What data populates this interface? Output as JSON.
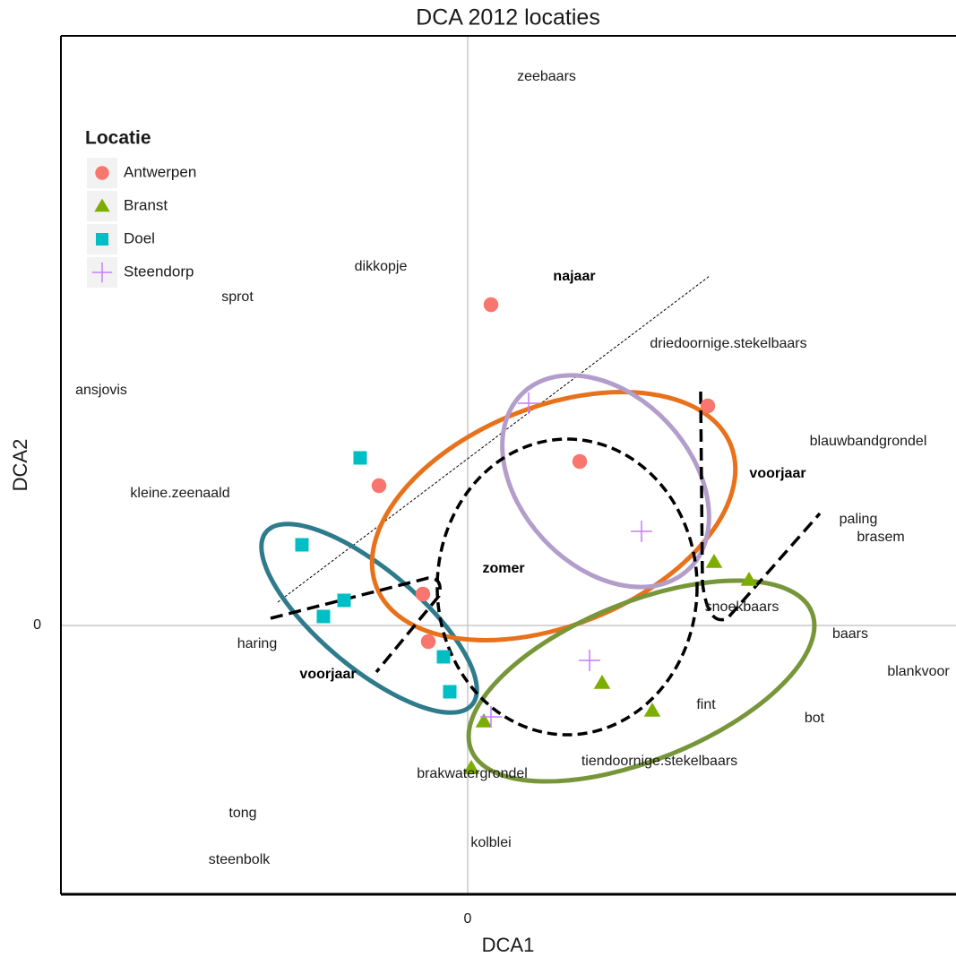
{
  "chart_data": {
    "type": "scatter",
    "title": "DCA 2012 locaties",
    "x_label": "DCA1",
    "y_label": "DCA2",
    "xlim": [
      -4.54,
      5.45
    ],
    "ylim": [
      -3.0,
      6.58
    ],
    "xticks": [
      0
    ],
    "yticks": [
      0
    ],
    "legend_title": "Locatie",
    "legend_position": "upper left",
    "series": [
      {
        "name": "Antwerpen",
        "color": "#f8766d",
        "marker": "circle",
        "x": [
          0.26,
          2.68,
          1.25,
          -0.99,
          -0.5,
          -0.44
        ],
        "y": [
          3.58,
          2.45,
          1.83,
          1.56,
          0.35,
          -0.18
        ]
      },
      {
        "name": "Branst",
        "color": "#7cae00",
        "marker": "triangle",
        "x": [
          2.75,
          3.14,
          1.5,
          2.06,
          0.18,
          0.04
        ],
        "y": [
          0.71,
          0.51,
          -0.64,
          -0.95,
          -1.07,
          -1.59
        ]
      },
      {
        "name": "Doel",
        "color": "#00bfc4",
        "marker": "square",
        "x": [
          -1.2,
          -1.85,
          -1.38,
          -1.61,
          -0.27,
          -0.2
        ],
        "y": [
          1.87,
          0.9,
          0.28,
          0.1,
          -0.35,
          -0.74
        ]
      },
      {
        "name": "Steendorp",
        "color": "#c77cff",
        "marker": "plus",
        "x": [
          0.68,
          1.94,
          1.36,
          0.26
        ],
        "y": [
          2.48,
          1.05,
          -0.39,
          -1.02
        ]
      }
    ],
    "species": [
      {
        "label": "zeebaars",
        "x": 0.88,
        "y": 6.12
      },
      {
        "label": "dikkopje",
        "x": -0.97,
        "y": 4.0
      },
      {
        "label": "sprot",
        "x": -2.57,
        "y": 3.66
      },
      {
        "label": "driedoornige.stekelbaars",
        "x": 2.91,
        "y": 3.14
      },
      {
        "label": "ansjovis",
        "x": -4.09,
        "y": 2.62
      },
      {
        "label": "blauwbandgrondel",
        "x": 4.47,
        "y": 2.05
      },
      {
        "label": "kleine.zeenaald",
        "x": -3.21,
        "y": 1.47
      },
      {
        "label": "paling",
        "x": 4.36,
        "y": 1.18
      },
      {
        "label": "brasem",
        "x": 4.61,
        "y": 0.98
      },
      {
        "label": "snoekbaars",
        "x": 3.06,
        "y": 0.2
      },
      {
        "label": "haring",
        "x": -2.35,
        "y": -0.21
      },
      {
        "label": "baars",
        "x": 4.27,
        "y": -0.1
      },
      {
        "label": "blankvoor",
        "x": 5.03,
        "y": -0.52
      },
      {
        "label": "fint",
        "x": 2.66,
        "y": -0.89
      },
      {
        "label": "bot",
        "x": 3.87,
        "y": -1.04
      },
      {
        "label": "tiendoornige.stekelbaars",
        "x": 2.14,
        "y": -1.52
      },
      {
        "label": "brakwatergrondel",
        "x": 0.05,
        "y": -1.66
      },
      {
        "label": "tong",
        "x": -2.51,
        "y": -2.1
      },
      {
        "label": "kolblei",
        "x": 0.26,
        "y": -2.43
      },
      {
        "label": "steenbolk",
        "x": -2.55,
        "y": -2.62
      }
    ],
    "annotations": [
      "najaar",
      "voorjaar",
      "zomer",
      "voorjaar"
    ]
  }
}
